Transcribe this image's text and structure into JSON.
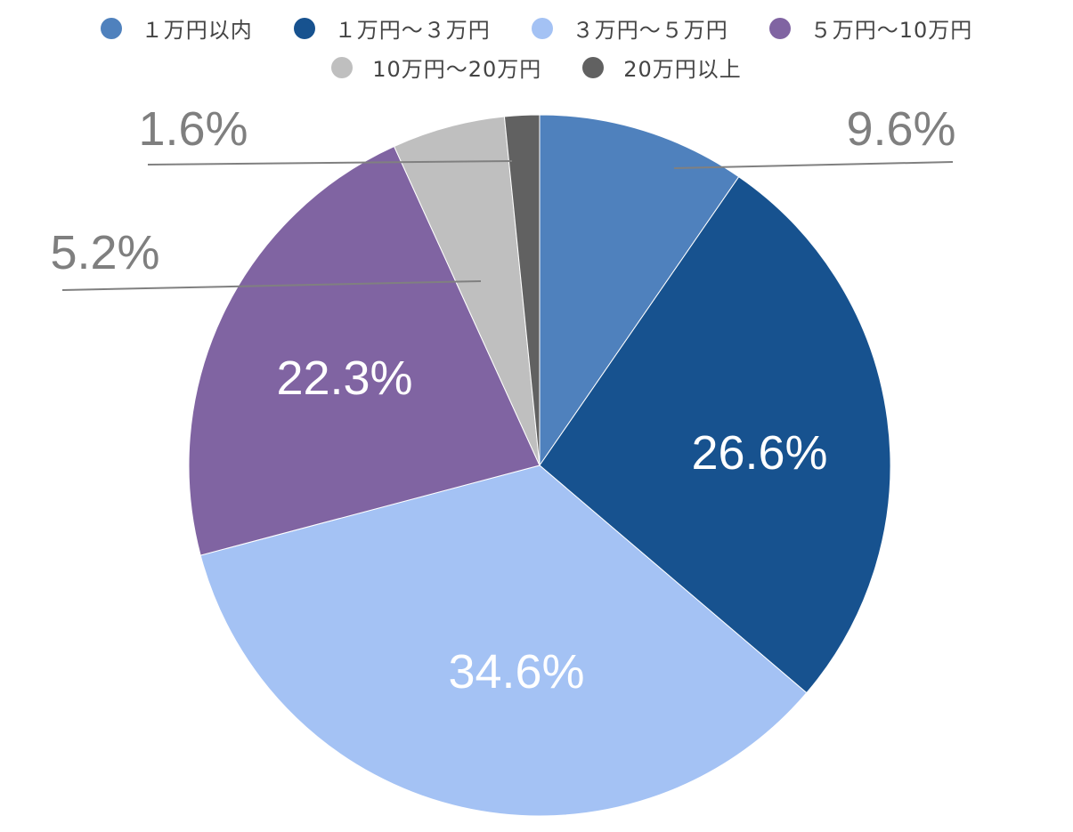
{
  "chart_data": {
    "type": "pie",
    "title": "",
    "legend_position": "top",
    "categories": [
      "１万円以内",
      "１万円～３万円",
      "３万円～５万円",
      "５万円～10万円",
      "10万円～20万円",
      "20万円以上"
    ],
    "values": [
      9.6,
      26.6,
      34.6,
      22.3,
      5.2,
      1.6
    ],
    "labels": [
      "9.6%",
      "26.6%",
      "34.6%",
      "22.3%",
      "5.2%",
      "1.6%"
    ],
    "colors": [
      "#4f81bd",
      "#17528f",
      "#a4c2f4",
      "#8064a2",
      "#bfbfbf",
      "#616161"
    ],
    "label_colors": [
      "#7f7f7f",
      "#ffffff",
      "#ffffff",
      "#ffffff",
      "#7f7f7f",
      "#7f7f7f"
    ],
    "legend_rows": [
      [
        "１万円以内",
        "１万円～３万円",
        "３万円～５万円",
        "５万円～10万円"
      ],
      [
        "10万円～20万円",
        "20万円以上"
      ]
    ]
  }
}
